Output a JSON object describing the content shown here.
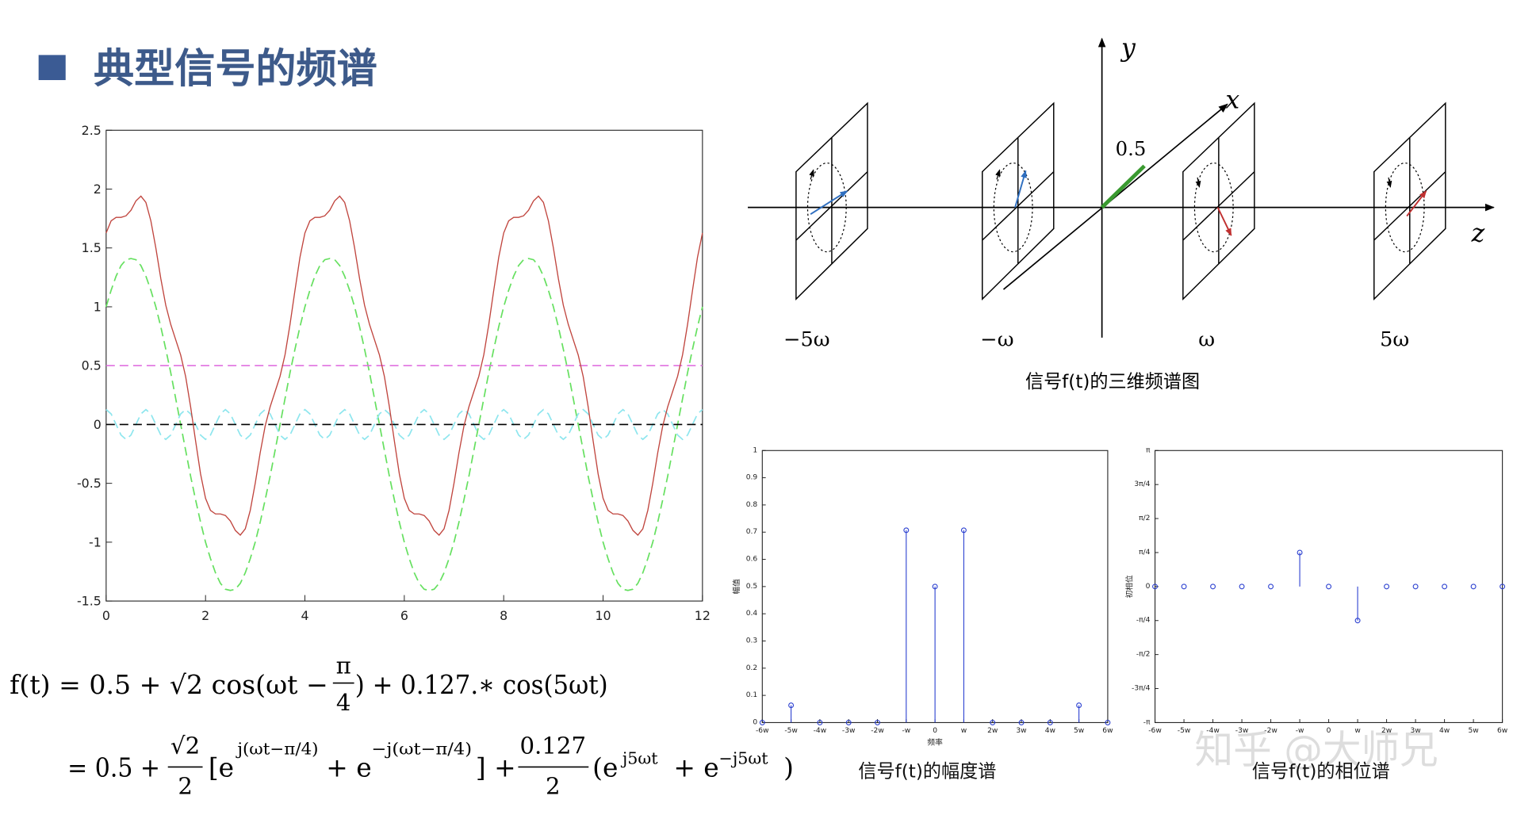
{
  "slide": {
    "title": "典型信号的频谱",
    "watermark": "知乎 @大师兄"
  },
  "formula": {
    "line1": {
      "left": "f(t) = 0.5 + √2 cos(ωt −",
      "frac_num": "π",
      "frac_den": "4",
      "right": ") + 0.127.∗ cos(5ωt)"
    },
    "line2": {
      "start": "= 0.5 +",
      "frac1_num": "√2",
      "frac1_den": "2",
      "e1": "[e",
      "exp1": "j(ωt−π/4)",
      "e2": "+ e",
      "exp2": "−j(ωt−π/4)",
      "mid": "] +",
      "frac2_num": "0.127",
      "frac2_den": "2",
      "e3": "(e",
      "exp3": "j5ωt",
      "e4": "+ e",
      "exp4": "−j5ωt",
      "end": ")"
    }
  },
  "diagram": {
    "axis_labels": {
      "x": "x",
      "y": "y",
      "z": "z"
    },
    "magnitude_label": "0.5",
    "frequency_labels": [
      "−5ω",
      "−ω",
      "ω",
      "5ω"
    ],
    "caption": "信号f(t)的三维频谱图"
  },
  "chart_data": [
    {
      "type": "line",
      "xlim": [
        0,
        12
      ],
      "ylim": [
        -1.5,
        2.5
      ],
      "xticks": [
        0,
        2,
        4,
        6,
        8,
        10,
        12
      ],
      "yticks": [
        -1.5,
        -1,
        -0.5,
        0,
        0.5,
        1,
        1.5,
        2,
        2.5
      ],
      "x": [
        0,
        0.1,
        0.2,
        0.3,
        0.4,
        0.5,
        0.6,
        0.7,
        0.8,
        0.9,
        1,
        1.1,
        1.2,
        1.3,
        1.4,
        1.5,
        1.6,
        1.7,
        1.8,
        1.9,
        2,
        2.1,
        2.2,
        2.3,
        2.4,
        2.5,
        2.6,
        2.7,
        2.8,
        2.9,
        3,
        3.1,
        3.2,
        3.3,
        3.4,
        3.5,
        3.6,
        3.7,
        3.8,
        3.9,
        4,
        4.1,
        4.2,
        4.3,
        4.4,
        4.5,
        4.6,
        4.7,
        4.8,
        4.9,
        5,
        5.1,
        5.2,
        5.3,
        5.4,
        5.5,
        5.6,
        5.7,
        5.8,
        5.9,
        6,
        6.1,
        6.2,
        6.3,
        6.4,
        6.5,
        6.6,
        6.7,
        6.8,
        6.9,
        7,
        7.1,
        7.2,
        7.3,
        7.4,
        7.5,
        7.6,
        7.7,
        7.8,
        7.9,
        8,
        8.1,
        8.2,
        8.3,
        8.4,
        8.5,
        8.6,
        8.7,
        8.8,
        8.9,
        9,
        9.1,
        9.2,
        9.3,
        9.4,
        9.5,
        9.6,
        9.7,
        9.8,
        9.9,
        10,
        10.1,
        10.2,
        10.3,
        10.4,
        10.5,
        10.6,
        10.7,
        10.8,
        10.9,
        11,
        11.1,
        11.2,
        11.3,
        11.4,
        11.5,
        11.6,
        11.7,
        11.8,
        11.9,
        12
      ],
      "series": [
        {
          "color": "#66e060",
          "dash": true,
          "values": [
            1,
            1.14,
            1.26,
            1.35,
            1.4,
            1.41,
            1.4,
            1.35,
            1.26,
            1.14,
            1,
            0.83,
            0.64,
            0.44,
            0.22,
            0,
            -0.22,
            -0.44,
            -0.64,
            -0.83,
            -1,
            -1.14,
            -1.26,
            -1.35,
            -1.4,
            -1.41,
            -1.4,
            -1.35,
            -1.26,
            -1.14,
            -1,
            -0.83,
            -0.64,
            -0.44,
            -0.22,
            0,
            0.22,
            0.44,
            0.64,
            0.83,
            1,
            1.14,
            1.26,
            1.35,
            1.4,
            1.41,
            1.4,
            1.35,
            1.26,
            1.14,
            1,
            0.83,
            0.64,
            0.44,
            0.22,
            0,
            -0.22,
            -0.44,
            -0.64,
            -0.83,
            -1,
            -1.14,
            -1.26,
            -1.35,
            -1.4,
            -1.41,
            -1.4,
            -1.35,
            -1.26,
            -1.14,
            -1,
            -0.83,
            -0.64,
            -0.44,
            -0.22,
            0,
            0.22,
            0.44,
            0.64,
            0.83,
            1,
            1.14,
            1.26,
            1.35,
            1.4,
            1.41,
            1.4,
            1.35,
            1.26,
            1.14,
            1,
            0.83,
            0.64,
            0.44,
            0.22,
            0,
            -0.22,
            -0.44,
            -0.64,
            -0.83,
            -1,
            -1.14,
            -1.26,
            -1.35,
            -1.4,
            -1.41,
            -1.4,
            -1.35,
            -1.26,
            -1.14,
            -1,
            -0.83,
            -0.64,
            -0.44,
            -0.22,
            0,
            0.22,
            0.44,
            0.64,
            0.83,
            1
          ]
        },
        {
          "color": "#8ee6ee",
          "dash": true,
          "values": [
            0.127,
            0.09,
            0,
            -0.09,
            -0.127,
            -0.09,
            0,
            0.09,
            0.127,
            0.09,
            0,
            -0.09,
            -0.127,
            -0.09,
            0,
            0.09,
            0.127,
            0.09,
            0,
            -0.09,
            -0.127,
            -0.09,
            0,
            0.09,
            0.127,
            0.09,
            0,
            -0.09,
            -0.127,
            -0.09,
            0,
            0.09,
            0.127,
            0.09,
            0,
            -0.09,
            -0.127,
            -0.09,
            0,
            0.09,
            0.127,
            0.09,
            0,
            -0.09,
            -0.127,
            -0.09,
            0,
            0.09,
            0.127,
            0.09,
            0,
            -0.09,
            -0.127,
            -0.09,
            0,
            0.09,
            0.127,
            0.09,
            0,
            -0.09,
            -0.127,
            -0.09,
            0,
            0.09,
            0.127,
            0.09,
            0,
            -0.09,
            -0.127,
            -0.09,
            0,
            0.09,
            0.127,
            0.09,
            0,
            -0.09,
            -0.127,
            -0.09,
            0,
            0.09,
            0.127,
            0.09,
            0,
            -0.09,
            -0.127,
            -0.09,
            0,
            0.09,
            0.127,
            0.09,
            0,
            -0.09,
            -0.127,
            -0.09,
            0,
            0.09,
            0.127,
            0.09,
            0,
            -0.09,
            -0.127,
            -0.09,
            0,
            0.09,
            0.127,
            0.09,
            0,
            -0.09,
            -0.127,
            -0.09,
            0,
            0.09,
            0.127,
            0.09,
            0,
            -0.09,
            -0.127,
            -0.09,
            0,
            0.09,
            0.127
          ]
        },
        {
          "color": "#e070e0",
          "dash": true,
          "x": [
            0,
            12
          ],
          "values": [
            0.5,
            0.5
          ]
        },
        {
          "color": "#000000",
          "dash": true,
          "x": [
            0,
            12
          ],
          "values": [
            0,
            0
          ]
        },
        {
          "color": "#c0453e",
          "dash": false,
          "values": [
            1.627,
            1.73,
            1.76,
            1.76,
            1.773,
            1.82,
            1.9,
            1.94,
            1.887,
            1.73,
            1.5,
            1.24,
            1.013,
            0.85,
            0.72,
            0.59,
            0.407,
            0.15,
            -0.14,
            -0.42,
            -0.627,
            -0.73,
            -0.76,
            -0.76,
            -0.773,
            -0.82,
            -0.9,
            -0.94,
            -0.887,
            -0.73,
            -0.5,
            -0.24,
            -0.013,
            0.15,
            0.28,
            0.41,
            0.593,
            0.85,
            1.14,
            1.42,
            1.627,
            1.73,
            1.76,
            1.76,
            1.773,
            1.82,
            1.9,
            1.94,
            1.887,
            1.73,
            1.5,
            1.24,
            1.013,
            0.85,
            0.72,
            0.59,
            0.407,
            0.15,
            -0.14,
            -0.42,
            -0.627,
            -0.73,
            -0.76,
            -0.76,
            -0.773,
            -0.82,
            -0.9,
            -0.94,
            -0.887,
            -0.73,
            -0.5,
            -0.24,
            -0.013,
            0.15,
            0.28,
            0.41,
            0.593,
            0.85,
            1.14,
            1.42,
            1.627,
            1.73,
            1.76,
            1.76,
            1.773,
            1.82,
            1.9,
            1.94,
            1.887,
            1.73,
            1.5,
            1.24,
            1.013,
            0.85,
            0.72,
            0.59,
            0.407,
            0.15,
            -0.14,
            -0.42,
            -0.627,
            -0.73,
            -0.76,
            -0.76,
            -0.773,
            -0.82,
            -0.9,
            -0.94,
            -0.887,
            -0.73,
            -0.5,
            -0.24,
            -0.013,
            0.15,
            0.28,
            0.41,
            0.593,
            0.85,
            1.14,
            1.42,
            1.627
          ]
        }
      ]
    },
    {
      "type": "stem",
      "title": "信号f(t)的幅度谱",
      "xlabel": "频率",
      "ylabel": "幅值",
      "color": "#2a3fd0",
      "categories": [
        "-6w",
        "-5w",
        "-4w",
        "-3w",
        "-2w",
        "-w",
        "0",
        "w",
        "2w",
        "3w",
        "4w",
        "5w",
        "6w"
      ],
      "values": [
        0,
        0.0635,
        0,
        0,
        0,
        0.707,
        0.5,
        0.707,
        0,
        0,
        0,
        0.0635,
        0
      ],
      "ylim": [
        0,
        1
      ],
      "yticks": [
        0,
        0.1,
        0.2,
        0.3,
        0.4,
        0.5,
        0.6,
        0.7,
        0.8,
        0.9,
        1
      ]
    },
    {
      "type": "stem",
      "title": "信号f(t)的相位谱",
      "ylabel": "初相位",
      "color": "#2a3fd0",
      "categories": [
        "-6w",
        "-5w",
        "-4w",
        "-3w",
        "-2w",
        "-w",
        "0",
        "w",
        "2w",
        "3w",
        "4w",
        "5w",
        "6w"
      ],
      "values": [
        0,
        0,
        0,
        0,
        0,
        0.785,
        0,
        -0.785,
        0,
        0,
        0,
        0,
        0
      ],
      "ylim": [
        -3.1416,
        3.1416
      ],
      "yticks": [
        {
          "value": -3.1416,
          "label": "-π"
        },
        {
          "value": -2.3562,
          "label": "-3π/4"
        },
        {
          "value": -1.5708,
          "label": "-π/2"
        },
        {
          "value": -0.7854,
          "label": "-π/4"
        },
        0,
        {
          "value": 0.7854,
          "label": "π/4"
        },
        {
          "value": 1.5708,
          "label": "π/2"
        },
        {
          "value": 2.3562,
          "label": "3π/4"
        },
        {
          "value": 3.1416,
          "label": "π"
        }
      ]
    }
  ]
}
